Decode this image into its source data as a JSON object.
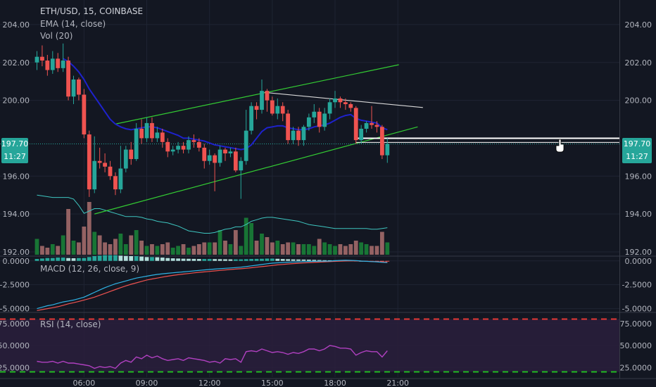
{
  "header": {
    "title": "ETH/USD, 15, COINBASE",
    "ema_label": "EMA (14, close)",
    "vol_label": "Vol (20)"
  },
  "colors": {
    "background": "#131722",
    "up": "#26a69a",
    "down": "#ef5350",
    "ema": "#1e22cc",
    "channel": "#33cc33",
    "macd": "#2fb4e6",
    "signal": "#ef5350",
    "rsi": "#b040c0",
    "rsi_band": "#2a1e3c",
    "rsi_upper": "#e53935",
    "rsi_lower": "#22bb22",
    "price_tag": "#26a69a"
  },
  "price_tag": {
    "price": "197.70",
    "countdown": "11:27"
  },
  "macd_label": "MACD (12, 26, close, 9)",
  "rsi_label": "RSI (14, close)",
  "chart_data": [
    {
      "type": "candlestick",
      "title": "ETH/USD, 15, COINBASE",
      "y_ticks": [
        "204.00",
        "202.00",
        "200.00",
        "196.00",
        "194.00",
        "192.00"
      ],
      "ylim": [
        191.85,
        205.0
      ],
      "x_ticks": [
        "06:00",
        "09:00",
        "12:00",
        "15:00",
        "18:00",
        "21:00"
      ],
      "x_tick_index": [
        9,
        21,
        33,
        45,
        57,
        69
      ],
      "candles": [
        [
          202.0,
          202.3,
          202.6,
          201.6
        ],
        [
          202.3,
          202.1,
          202.9,
          201.8
        ],
        [
          202.1,
          201.6,
          202.4,
          201.3
        ],
        [
          201.6,
          202.2,
          202.6,
          201.4
        ],
        [
          202.2,
          201.7,
          202.5,
          201.5
        ],
        [
          201.7,
          202.1,
          203.0,
          201.5
        ],
        [
          202.1,
          200.2,
          202.3,
          200.0
        ],
        [
          200.2,
          201.1,
          201.3,
          199.8
        ],
        [
          201.1,
          200.3,
          201.2,
          200.0
        ],
        [
          200.3,
          198.2,
          200.6,
          198.0
        ],
        [
          198.2,
          195.3,
          198.4,
          194.9
        ],
        [
          195.3,
          196.8,
          198.1,
          195.1
        ],
        [
          196.8,
          196.7,
          197.5,
          196.4
        ],
        [
          196.7,
          196.5,
          197.2,
          196.2
        ],
        [
          196.5,
          196.0,
          196.8,
          195.8
        ],
        [
          196.0,
          195.3,
          196.2,
          195.0
        ],
        [
          195.3,
          196.4,
          197.6,
          195.1
        ],
        [
          196.4,
          197.4,
          197.6,
          196.2
        ],
        [
          197.4,
          196.9,
          197.8,
          196.6
        ],
        [
          196.9,
          198.5,
          198.8,
          196.8
        ],
        [
          198.5,
          198.0,
          199.0,
          197.7
        ],
        [
          198.0,
          198.8,
          199.1,
          197.8
        ],
        [
          198.8,
          198.0,
          199.1,
          197.8
        ],
        [
          198.0,
          198.3,
          198.6,
          197.8
        ],
        [
          198.3,
          197.8,
          198.5,
          197.5
        ],
        [
          197.8,
          197.3,
          198.0,
          197.0
        ],
        [
          197.3,
          197.4,
          197.6,
          197.1
        ],
        [
          197.4,
          197.6,
          197.8,
          197.2
        ],
        [
          197.6,
          197.4,
          197.8,
          197.2
        ],
        [
          197.4,
          197.9,
          198.1,
          197.2
        ],
        [
          197.9,
          197.8,
          198.2,
          197.5
        ],
        [
          197.8,
          197.5,
          198.0,
          197.3
        ],
        [
          197.5,
          196.8,
          197.7,
          196.4
        ],
        [
          196.8,
          197.1,
          197.4,
          196.6
        ],
        [
          197.1,
          196.7,
          197.2,
          195.2
        ],
        [
          196.7,
          197.4,
          197.6,
          196.5
        ],
        [
          197.4,
          197.2,
          197.5,
          196.8
        ],
        [
          197.2,
          197.3,
          197.5,
          197.0
        ],
        [
          197.3,
          196.3,
          197.5,
          196.2
        ],
        [
          196.3,
          196.8,
          197.0,
          194.8
        ],
        [
          196.8,
          198.4,
          199.5,
          196.6
        ],
        [
          198.4,
          199.7,
          199.9,
          198.2
        ],
        [
          199.7,
          199.5,
          199.9,
          199.0
        ],
        [
          199.5,
          200.5,
          201.1,
          199.3
        ],
        [
          200.5,
          200.0,
          200.6,
          199.4
        ],
        [
          200.0,
          199.3,
          200.2,
          199.2
        ],
        [
          199.3,
          199.7,
          200.1,
          199.0
        ],
        [
          199.7,
          199.3,
          199.9,
          198.9
        ],
        [
          199.3,
          197.9,
          199.5,
          197.7
        ],
        [
          197.9,
          198.4,
          198.6,
          197.7
        ],
        [
          198.4,
          197.9,
          198.6,
          197.6
        ],
        [
          197.9,
          198.6,
          198.7,
          197.6
        ],
        [
          198.6,
          199.1,
          199.3,
          198.4
        ],
        [
          199.1,
          199.4,
          199.8,
          198.8
        ],
        [
          199.4,
          198.6,
          199.6,
          198.3
        ],
        [
          198.6,
          199.3,
          199.6,
          198.4
        ],
        [
          199.3,
          199.9,
          200.1,
          199.0
        ],
        [
          199.9,
          200.1,
          200.5,
          199.6
        ],
        [
          200.1,
          199.9,
          200.2,
          199.6
        ],
        [
          199.9,
          199.8,
          200.1,
          199.5
        ],
        [
          199.8,
          199.6,
          199.9,
          199.4
        ],
        [
          199.6,
          197.9,
          199.7,
          197.7
        ],
        [
          197.9,
          198.5,
          198.7,
          197.7
        ],
        [
          198.5,
          198.8,
          198.9,
          198.3
        ],
        [
          198.8,
          198.7,
          199.7,
          198.5
        ],
        [
          198.7,
          198.6,
          198.9,
          198.3
        ],
        [
          198.6,
          197.1,
          198.7,
          196.9
        ],
        [
          197.1,
          197.7,
          198.0,
          196.7
        ]
      ],
      "volumes": [
        0.45,
        0.25,
        0.2,
        0.3,
        0.25,
        0.55,
        1.3,
        0.4,
        0.35,
        0.8,
        1.5,
        0.65,
        0.55,
        0.35,
        0.3,
        0.45,
        0.6,
        0.3,
        0.55,
        0.7,
        0.4,
        0.25,
        0.3,
        0.25,
        0.3,
        0.35,
        0.2,
        0.25,
        0.3,
        0.2,
        0.25,
        0.3,
        0.35,
        0.35,
        0.35,
        0.7,
        0.4,
        0.3,
        0.7,
        0.25,
        1.05,
        0.9,
        0.4,
        0.6,
        0.5,
        0.35,
        0.4,
        0.3,
        0.35,
        0.35,
        0.3,
        0.3,
        0.3,
        0.25,
        0.45,
        0.35,
        0.3,
        0.25,
        0.3,
        0.25,
        0.3,
        0.4,
        0.35,
        0.3,
        0.25,
        0.25,
        0.65,
        0.35
      ],
      "vol_ma": [
        0.75,
        0.74,
        0.73,
        0.72,
        0.72,
        0.72,
        0.72,
        0.7,
        0.62,
        0.52,
        0.55,
        0.58,
        0.58,
        0.56,
        0.54,
        0.52,
        0.5,
        0.48,
        0.48,
        0.48,
        0.47,
        0.45,
        0.44,
        0.42,
        0.41,
        0.4,
        0.38,
        0.36,
        0.33,
        0.3,
        0.29,
        0.28,
        0.27,
        0.27,
        0.28,
        0.3,
        0.32,
        0.33,
        0.35,
        0.35,
        0.38,
        0.42,
        0.44,
        0.46,
        0.47,
        0.47,
        0.46,
        0.45,
        0.44,
        0.43,
        0.42,
        0.4,
        0.38,
        0.37,
        0.36,
        0.35,
        0.34,
        0.33,
        0.33,
        0.33,
        0.33,
        0.33,
        0.33,
        0.33,
        0.32,
        0.32,
        0.33,
        0.34
      ],
      "ema": [
        null,
        null,
        null,
        null,
        null,
        202.2,
        202.05,
        201.8,
        201.5,
        201.1,
        200.6,
        200.2,
        199.8,
        199.4,
        199.0,
        198.75,
        198.6,
        198.5,
        198.45,
        198.5,
        198.55,
        198.6,
        198.6,
        198.55,
        198.45,
        198.35,
        198.25,
        198.15,
        198.0,
        198.0,
        197.95,
        197.9,
        197.85,
        197.75,
        197.65,
        197.6,
        197.55,
        197.5,
        197.45,
        197.4,
        197.45,
        197.65,
        198.0,
        198.35,
        198.55,
        198.6,
        198.65,
        198.65,
        198.55,
        198.5,
        198.45,
        198.45,
        198.5,
        198.6,
        198.65,
        198.7,
        198.8,
        198.95,
        199.1,
        199.2,
        199.25,
        199.05,
        198.95,
        198.9,
        198.85,
        198.8,
        198.55,
        198.45
      ],
      "channel_upper": {
        "from": [
          15,
          198.75
        ],
        "to": [
          69.2,
          201.88
        ]
      },
      "channel_lower": {
        "from": [
          11,
          194.0
        ],
        "to": [
          72.8,
          198.6
        ]
      },
      "trendline": {
        "from": [
          43.5,
          200.42
        ],
        "to": [
          73.8,
          199.62
        ]
      },
      "price_line": 197.7
    },
    {
      "type": "histogram+line",
      "title": "MACD (12, 26, close, 9)",
      "y_ticks": [
        "0.0000",
        "-2.5000",
        "-5.0000"
      ],
      "ylim": [
        -5.25,
        0.35
      ],
      "macd": [
        -5.0,
        -4.85,
        -4.7,
        -4.6,
        -4.45,
        -4.3,
        -4.2,
        -4.1,
        -3.95,
        -3.8,
        -3.55,
        -3.3,
        -3.05,
        -2.8,
        -2.6,
        -2.4,
        -2.25,
        -2.1,
        -1.95,
        -1.8,
        -1.7,
        -1.6,
        -1.5,
        -1.42,
        -1.35,
        -1.3,
        -1.25,
        -1.2,
        -1.15,
        -1.1,
        -1.05,
        -1.0,
        -0.95,
        -0.9,
        -0.86,
        -0.82,
        -0.78,
        -0.74,
        -0.7,
        -0.66,
        -0.6,
        -0.52,
        -0.45,
        -0.38,
        -0.3,
        -0.24,
        -0.2,
        -0.17,
        -0.14,
        -0.12,
        -0.1,
        -0.08,
        -0.06,
        -0.05,
        -0.04,
        -0.03,
        -0.02,
        0.02,
        0.05,
        0.06,
        0.05,
        0.03,
        -0.02,
        -0.05,
        -0.08,
        -0.1,
        -0.15,
        -0.18
      ],
      "signal": [
        -5.2,
        -5.1,
        -5.0,
        -4.9,
        -4.8,
        -4.65,
        -4.5,
        -4.38,
        -4.25,
        -4.1,
        -3.95,
        -3.8,
        -3.6,
        -3.4,
        -3.2,
        -3.0,
        -2.8,
        -2.62,
        -2.45,
        -2.3,
        -2.15,
        -2.0,
        -1.9,
        -1.8,
        -1.7,
        -1.6,
        -1.52,
        -1.45,
        -1.38,
        -1.32,
        -1.26,
        -1.2,
        -1.15,
        -1.1,
        -1.05,
        -1.0,
        -0.95,
        -0.9,
        -0.86,
        -0.82,
        -0.78,
        -0.72,
        -0.66,
        -0.6,
        -0.54,
        -0.48,
        -0.42,
        -0.37,
        -0.32,
        -0.28,
        -0.25,
        -0.22,
        -0.19,
        -0.16,
        -0.13,
        -0.1,
        -0.08,
        -0.05,
        -0.03,
        -0.01,
        0.0,
        0.0,
        -0.02,
        -0.04,
        -0.06,
        -0.08,
        -0.11,
        -0.14
      ],
      "hist": [
        0.2,
        0.25,
        0.3,
        0.3,
        0.35,
        0.35,
        0.3,
        0.28,
        0.3,
        0.3,
        0.4,
        0.5,
        0.55,
        0.6,
        0.6,
        0.6,
        0.55,
        0.52,
        0.5,
        0.5,
        0.45,
        0.4,
        0.4,
        0.38,
        0.35,
        0.3,
        0.27,
        0.25,
        0.23,
        0.22,
        0.21,
        0.2,
        0.2,
        0.2,
        0.19,
        0.18,
        0.17,
        0.16,
        0.16,
        0.16,
        0.18,
        0.2,
        0.21,
        0.22,
        0.24,
        0.24,
        0.22,
        0.2,
        0.18,
        0.16,
        0.15,
        0.14,
        0.13,
        0.11,
        0.09,
        0.07,
        0.06,
        0.07,
        0.08,
        0.07,
        0.05,
        0.03,
        0.0,
        -0.01,
        -0.02,
        -0.02,
        -0.04,
        -0.04
      ]
    },
    {
      "type": "line",
      "title": "RSI (14, close)",
      "y_ticks": [
        "75.0000",
        "50.0000",
        "25.0000"
      ],
      "ylim": [
        14,
        86
      ],
      "bands": [
        80,
        20
      ],
      "values": [
        32,
        31,
        31,
        32,
        30,
        32,
        30,
        30,
        29,
        28,
        27,
        24,
        26,
        25,
        26,
        24,
        30,
        33,
        31,
        37,
        35,
        39,
        36,
        38,
        35,
        33,
        34,
        35,
        33,
        36,
        35,
        34,
        33,
        31,
        32,
        30,
        35,
        34,
        35,
        31,
        43,
        44,
        43,
        46,
        44,
        42,
        43,
        42,
        40,
        42,
        41,
        43,
        46,
        46,
        44,
        46,
        50,
        49,
        47,
        47,
        46,
        39,
        42,
        44,
        43,
        43,
        37,
        44
      ]
    }
  ]
}
